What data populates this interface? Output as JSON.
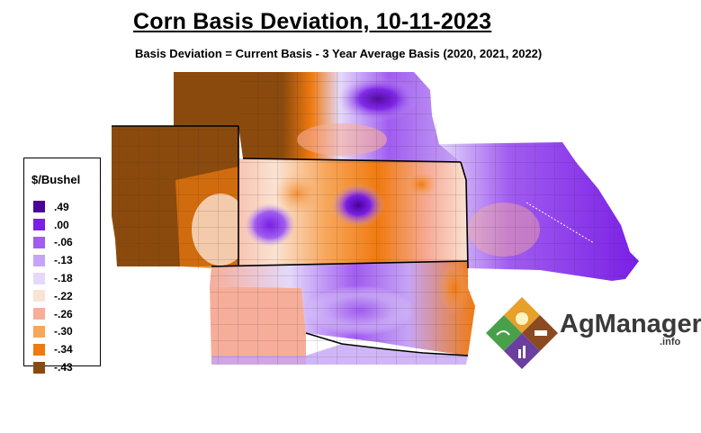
{
  "title": "Corn Basis Deviation, 10-11-2023",
  "subtitle": "Basis Deviation = Current Basis - 3 Year Average Basis (2020, 2021, 2022)",
  "legend": {
    "title": "$/Bushel",
    "items": [
      {
        "label": ".49",
        "color": "#4b0099"
      },
      {
        "label": ".00",
        "color": "#7a1fe6"
      },
      {
        "label": "-.06",
        "color": "#a15cf0"
      },
      {
        "label": "-.13",
        "color": "#c6a4f5"
      },
      {
        "label": "-.18",
        "color": "#e4d9fb"
      },
      {
        "label": "-.22",
        "color": "#fbe3d3"
      },
      {
        "label": "-.26",
        "color": "#f6ad9a"
      },
      {
        "label": "-.30",
        "color": "#f7a65a"
      },
      {
        "label": "-.34",
        "color": "#f07a10"
      },
      {
        "label": "-.43",
        "color": "#8b4a0d"
      }
    ]
  },
  "logo": {
    "text": "AgManager",
    "suffix": ".info"
  }
}
